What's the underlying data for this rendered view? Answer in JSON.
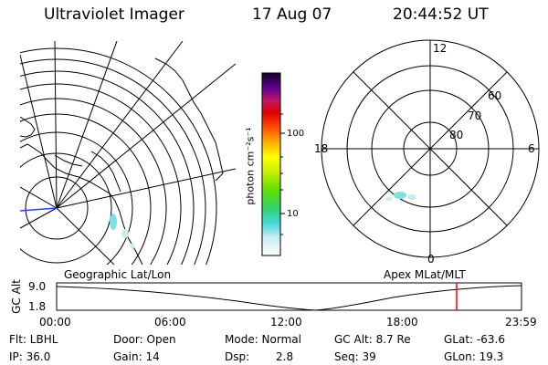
{
  "header": {
    "instrument": "Ultraviolet Imager",
    "date": "17 Aug 07",
    "time": "20:44:52 UT"
  },
  "colorbar": {
    "unit_label": "photon cm⁻²s⁻¹",
    "tick_100": "100",
    "tick_10": "10"
  },
  "polar_plot": {
    "mlt_12": "12",
    "mlt_18": "18",
    "mlt_6": "6",
    "mlt_0": "0",
    "lat_60": "60",
    "lat_70": "70",
    "lat_80": "80"
  },
  "labels": {
    "geo_title": "Geographic Lat/Lon",
    "apex_title": "Apex MLat/MLT"
  },
  "altitude_strip": {
    "axis_label": "GC Alt",
    "y_high": "9.0",
    "y_low": "1.8",
    "x_ticks": [
      "00:00",
      "06:00",
      "12:00",
      "18:00",
      "23:59"
    ],
    "marker_color": "#ff0000"
  },
  "footer": {
    "filter": "Flt: LBHL",
    "ip": "IP: 36.0",
    "door": "Door: Open",
    "gain": "Gain: 14",
    "mode": "Mode: Normal",
    "dsp_label": "Dsp:",
    "dsp_value": "2.8",
    "gc_alt": "GC Alt: 8.7 Re",
    "seq": "Seq: 39",
    "glat": "GLat: -63.6",
    "glon": "GLon: 19.3"
  }
}
